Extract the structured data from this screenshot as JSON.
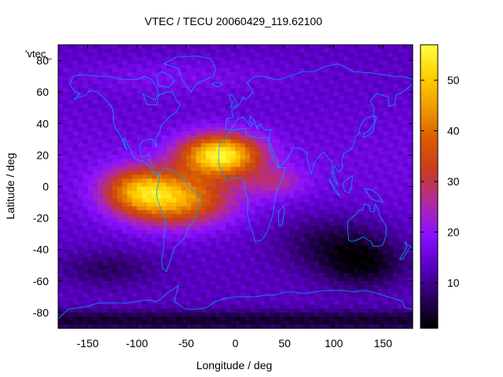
{
  "chart_data": {
    "type": "heatmap",
    "title": "VTEC / TECU 20060429_119.62100",
    "series_label": "'vtec_",
    "xlabel": "Longitude / deg",
    "ylabel": "Latitude / deg",
    "xlim": [
      -180,
      180
    ],
    "ylim": [
      -90,
      90
    ],
    "x_ticks": [
      -150,
      -100,
      -50,
      0,
      50,
      100,
      150
    ],
    "y_ticks": [
      80,
      60,
      40,
      20,
      0,
      -20,
      -40,
      -60,
      -80
    ],
    "colorbar": {
      "min": 1,
      "max": 57,
      "ticks": [
        10,
        20,
        30,
        40,
        50
      ],
      "palette": [
        "#000000",
        "#2a0060",
        "#5a00c8",
        "#8a12ff",
        "#b02aa0",
        "#c83c20",
        "#d85c00",
        "#f09a00",
        "#ffd000",
        "#ffff40"
      ]
    },
    "peak": {
      "lon": -15,
      "lat": 20,
      "value": 56
    },
    "grid_resolution_deg": {
      "lon": 5,
      "lat": 2.5
    },
    "overlay": "coastlines",
    "coastline_color": "#00a0ff"
  }
}
